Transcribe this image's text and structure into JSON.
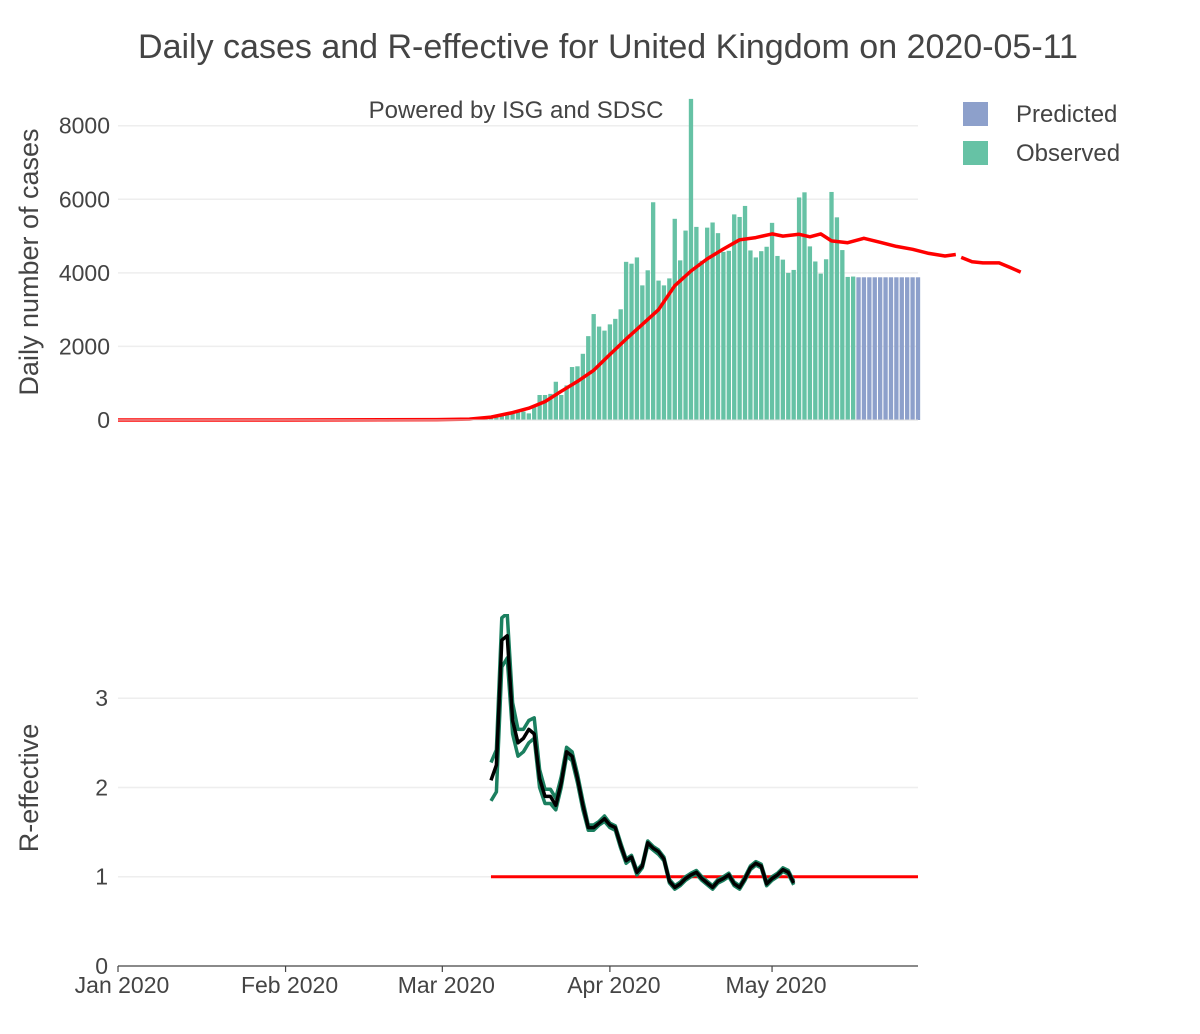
{
  "chart_data": {
    "title": "Daily cases and R-effective for United Kingdom on 2020-05-11",
    "annotation": "Powered by ISG and SDSC",
    "legend": {
      "placement": "top-right",
      "items": [
        {
          "key": "predicted",
          "label": "Predicted",
          "color": "#8da0cb"
        },
        {
          "key": "observed",
          "label": "Observed",
          "color": "#66c2a5"
        }
      ]
    },
    "colors": {
      "observed": "#66c2a5",
      "predicted": "#8da0cb",
      "smoothed": "#ff0000",
      "r_band": "#1b7f5f",
      "r_line": "#000000",
      "threshold": "#ff0000",
      "grid": "#eeeeee",
      "text": "#444444"
    },
    "x_axis": {
      "start": "2020-01-01",
      "end": "2020-05-28",
      "tick_labels": [
        "Jan 2020",
        "Feb 2020",
        "Mar 2020",
        "Apr 2020",
        "May 2020"
      ],
      "tick_dates": [
        "2020-01-01",
        "2020-02-01",
        "2020-03-01",
        "2020-04-01",
        "2020-05-01"
      ]
    },
    "cases_panel": {
      "type": "bar",
      "ylabel": "Daily number of cases",
      "ylim": [
        0,
        8700
      ],
      "yticks": [
        0,
        2000,
        4000,
        6000,
        8000
      ],
      "ytick_labels": [
        "0",
        "2000",
        "4000",
        "6000",
        "8000"
      ],
      "observed": {
        "start_date": "2020-03-06",
        "values": [
          48,
          40,
          60,
          58,
          70,
          80,
          120,
          140,
          200,
          250,
          230,
          180,
          400,
          680,
          680,
          710,
          1040,
          680,
          940,
          1440,
          1460,
          1800,
          2280,
          2880,
          2540,
          2430,
          2600,
          2750,
          3010,
          4300,
          4250,
          4420,
          3660,
          4070,
          5920,
          3790,
          3660,
          3850,
          5470,
          4340,
          5150,
          8730,
          5250,
          4330,
          5230,
          5370,
          5080,
          4570,
          4600,
          5590,
          5520,
          5820,
          4610,
          4420,
          4590,
          4710,
          5360,
          4460,
          4360,
          4000,
          4080,
          6050,
          6190,
          4720,
          4310,
          3980,
          4370,
          6200,
          5510,
          4620,
          3890,
          3900
        ]
      },
      "predicted": {
        "start_date": "2020-05-17",
        "values": [
          3880,
          3880,
          3880,
          3880,
          3880,
          3880,
          3880,
          3880,
          3880,
          3880,
          3880,
          3880
        ]
      },
      "smoothed": {
        "points": [
          [
            "2020-01-01",
            0
          ],
          [
            "2020-02-01",
            0
          ],
          [
            "2020-02-29",
            10
          ],
          [
            "2020-03-06",
            25
          ],
          [
            "2020-03-10",
            80
          ],
          [
            "2020-03-14",
            200
          ],
          [
            "2020-03-17",
            320
          ],
          [
            "2020-03-20",
            500
          ],
          [
            "2020-03-23",
            780
          ],
          [
            "2020-03-26",
            1050
          ],
          [
            "2020-03-29",
            1350
          ],
          [
            "2020-04-01",
            1780
          ],
          [
            "2020-04-04",
            2200
          ],
          [
            "2020-04-07",
            2600
          ],
          [
            "2020-04-10",
            3000
          ],
          [
            "2020-04-13",
            3650
          ],
          [
            "2020-04-16",
            4050
          ],
          [
            "2020-04-19",
            4380
          ],
          [
            "2020-04-22",
            4650
          ],
          [
            "2020-04-25",
            4900
          ],
          [
            "2020-04-28",
            4960
          ],
          [
            "2020-05-01",
            5060
          ],
          [
            "2020-05-03",
            5000
          ],
          [
            "2020-05-06",
            5050
          ],
          [
            "2020-05-08",
            4980
          ],
          [
            "2020-05-10",
            5060
          ],
          [
            "2020-05-12",
            4870
          ],
          [
            "2020-05-15",
            4820
          ],
          [
            "2020-05-18",
            4940
          ],
          [
            "2020-05-21",
            4830
          ],
          [
            "2020-05-24",
            4720
          ],
          [
            "2020-05-27",
            4640
          ],
          [
            "2020-05-30",
            4530
          ],
          [
            "2020-06-02",
            4460
          ],
          [
            "2020-06-04",
            4500
          ]
        ],
        "forecast_points": [
          [
            "2020-06-05",
            4420
          ],
          [
            "2020-06-07",
            4300
          ],
          [
            "2020-06-09",
            4270
          ],
          [
            "2020-06-12",
            4270
          ],
          [
            "2020-06-14",
            4150
          ],
          [
            "2020-06-16",
            4020
          ]
        ]
      }
    },
    "r_panel": {
      "type": "line",
      "ylabel": "R-effective",
      "ylim": [
        0,
        4.1
      ],
      "yticks": [
        0,
        1,
        2,
        3
      ],
      "ytick_labels": [
        "0",
        "1",
        "2",
        "3"
      ],
      "threshold": {
        "value": 1,
        "start_date": "2020-03-10",
        "end_date": "2020-05-28"
      },
      "series": {
        "start_date": "2020-03-10",
        "mean": [
          2.08,
          2.25,
          3.65,
          3.7,
          2.75,
          2.5,
          2.55,
          2.65,
          2.6,
          2.1,
          1.9,
          1.9,
          1.8,
          2.05,
          2.4,
          2.35,
          2.1,
          1.8,
          1.55,
          1.55,
          1.6,
          1.65,
          1.58,
          1.55,
          1.35,
          1.18,
          1.22,
          1.05,
          1.12,
          1.38,
          1.32,
          1.28,
          1.2,
          0.95,
          0.88,
          0.92,
          0.98,
          1.02,
          1.05,
          0.98,
          0.93,
          0.88,
          0.95,
          0.98,
          1.02,
          0.92,
          0.88,
          0.98,
          1.1,
          1.15,
          1.12,
          0.92,
          0.98,
          1.02,
          1.08,
          1.05,
          0.93
        ],
        "upper": [
          2.28,
          2.42,
          3.9,
          3.95,
          2.95,
          2.65,
          2.65,
          2.75,
          2.78,
          2.2,
          1.98,
          1.98,
          1.88,
          2.12,
          2.45,
          2.4,
          2.15,
          1.85,
          1.58,
          1.58,
          1.62,
          1.68,
          1.6,
          1.57,
          1.38,
          1.2,
          1.24,
          1.07,
          1.14,
          1.4,
          1.34,
          1.3,
          1.22,
          0.97,
          0.9,
          0.94,
          1.0,
          1.04,
          1.07,
          1.0,
          0.95,
          0.9,
          0.97,
          1.0,
          1.04,
          0.94,
          0.9,
          1.0,
          1.12,
          1.17,
          1.14,
          0.94,
          1.0,
          1.04,
          1.1,
          1.07,
          0.95
        ],
        "lower": [
          1.85,
          1.95,
          3.35,
          3.45,
          2.6,
          2.35,
          2.4,
          2.5,
          2.55,
          2.0,
          1.82,
          1.82,
          1.75,
          2.0,
          2.35,
          2.3,
          2.05,
          1.75,
          1.52,
          1.52,
          1.58,
          1.62,
          1.55,
          1.52,
          1.32,
          1.15,
          1.2,
          1.02,
          1.1,
          1.35,
          1.3,
          1.25,
          1.18,
          0.93,
          0.86,
          0.9,
          0.96,
          1.0,
          1.03,
          0.96,
          0.91,
          0.86,
          0.93,
          0.96,
          1.0,
          0.9,
          0.86,
          0.96,
          1.08,
          1.13,
          1.1,
          0.9,
          0.96,
          1.0,
          1.06,
          1.03,
          0.91
        ]
      }
    }
  }
}
